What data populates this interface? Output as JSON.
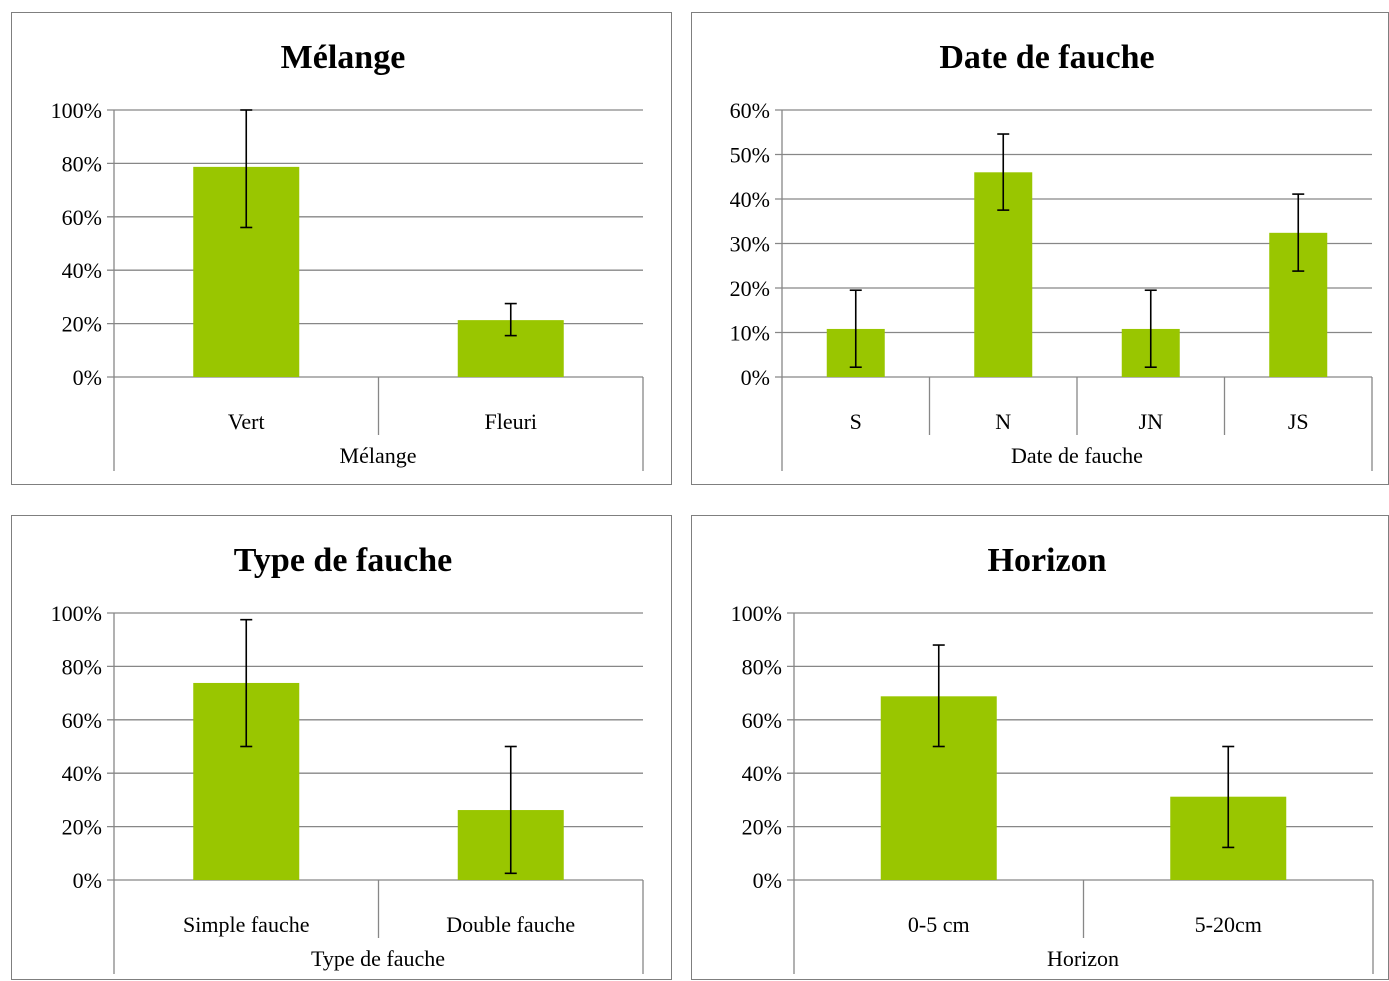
{
  "chart_data": [
    {
      "type": "bar",
      "title": "Mélange",
      "group_label": "Mélange",
      "categories": [
        "Vert",
        "Fleuri"
      ],
      "values": [
        78.7,
        21.3
      ],
      "errors": [
        [
          56,
          100
        ],
        [
          15.5,
          27.5
        ]
      ],
      "ylim": [
        0,
        100
      ],
      "yticks": [
        "0%",
        "20%",
        "40%",
        "60%",
        "80%",
        "100%"
      ],
      "yunit": "%",
      "grid": true,
      "bar_color": "#99c600"
    },
    {
      "type": "bar",
      "title": "Date de fauche",
      "group_label": "Date de fauche",
      "categories": [
        "S",
        "N",
        "JN",
        "JS"
      ],
      "values": [
        10.8,
        46,
        10.8,
        32.4
      ],
      "errors": [
        [
          2.2,
          19.5
        ],
        [
          37.5,
          54.6
        ],
        [
          2.2,
          19.5
        ],
        [
          23.8,
          41.1
        ]
      ],
      "ylim": [
        0,
        60
      ],
      "yticks": [
        "0%",
        "10%",
        "20%",
        "30%",
        "40%",
        "50%",
        "60%"
      ],
      "yunit": "%",
      "grid": true,
      "bar_color": "#99c600"
    },
    {
      "type": "bar",
      "title": "Type de fauche",
      "group_label": "Type de fauche",
      "categories": [
        "Simple fauche",
        "Double fauche"
      ],
      "values": [
        73.8,
        26.2
      ],
      "errors": [
        [
          50,
          97.5
        ],
        [
          2.5,
          50
        ]
      ],
      "ylim": [
        0,
        100
      ],
      "yticks": [
        "0%",
        "20%",
        "40%",
        "60%",
        "80%",
        "100%"
      ],
      "yunit": "%",
      "grid": true,
      "bar_color": "#99c600"
    },
    {
      "type": "bar",
      "title": "Horizon",
      "group_label": "Horizon",
      "categories": [
        "0-5 cm",
        "5-20cm"
      ],
      "values": [
        68.8,
        31.2
      ],
      "errors": [
        [
          50,
          88
        ],
        [
          12.2,
          50
        ]
      ],
      "ylim": [
        0,
        100
      ],
      "yticks": [
        "0%",
        "20%",
        "40%",
        "60%",
        "80%",
        "100%"
      ],
      "yunit": "%",
      "grid": true,
      "bar_color": "#99c600"
    }
  ]
}
